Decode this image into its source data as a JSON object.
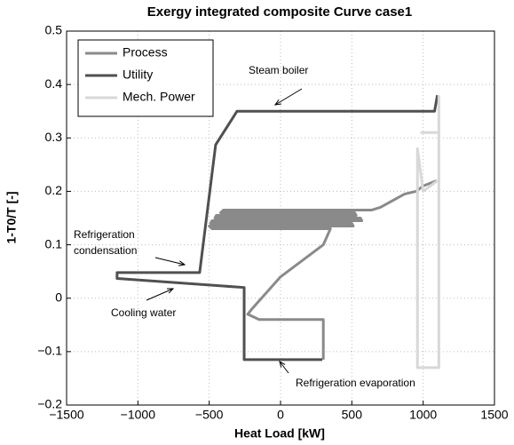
{
  "chart_data": {
    "type": "line",
    "title": "Exergy integrated composite Curve case1",
    "xlabel": "Heat Load [kW]",
    "ylabel": "1-T0/T [-]",
    "xlim": [
      -1500,
      1500
    ],
    "ylim": [
      -0.2,
      0.5
    ],
    "xticks": [
      {
        "value": -1500,
        "label": "−1500"
      },
      {
        "value": -1000,
        "label": "−1000"
      },
      {
        "value": -500,
        "label": "−500"
      },
      0,
      500,
      1000,
      1500
    ],
    "yticks": [
      {
        "value": -0.2,
        "label": "−0.2"
      },
      {
        "value": -0.1,
        "label": "−0.1"
      },
      0,
      0.1,
      0.2,
      0.3,
      0.4,
      0.5
    ],
    "grid": true,
    "legend": "upper left",
    "series": [
      {
        "name": "Process",
        "color": "#8a8a8a",
        "x": [
          1095,
          1000,
          950,
          870,
          700,
          640,
          -400,
          -420,
          520,
          530,
          -450,
          -460,
          560,
          570,
          -480,
          -490,
          500,
          510,
          -500,
          -480,
          350,
          300,
          0,
          -200,
          -230,
          -150,
          300,
          300
        ],
        "values": [
          0.22,
          0.21,
          0.2,
          0.195,
          0.17,
          0.165,
          0.165,
          0.16,
          0.16,
          0.155,
          0.155,
          0.15,
          0.15,
          0.145,
          0.145,
          0.14,
          0.14,
          0.135,
          0.135,
          0.13,
          0.13,
          0.1,
          0.04,
          -0.02,
          -0.03,
          -0.04,
          -0.04,
          -0.115
        ]
      },
      {
        "name": "Utility",
        "color": "#505050",
        "x": [
          1100,
          1080,
          -305,
          -455,
          -567,
          -1146,
          -1146,
          -255,
          -255,
          293
        ],
        "values": [
          0.38,
          0.35,
          0.35,
          0.287,
          0.048,
          0.048,
          0.037,
          0.02,
          -0.115,
          -0.115
        ]
      },
      {
        "name": "Mech. Power",
        "color": "#d8d8d8",
        "x": [
          1110,
          1110,
          960,
          960,
          1000,
          1100,
          null,
          980,
          1100
        ],
        "values": [
          0.38,
          -0.13,
          -0.13,
          0.28,
          0.2,
          0.22,
          null,
          0.31,
          0.31
        ]
      }
    ],
    "annotations": [
      "Steam boiler",
      "Refrigeration",
      "condensation",
      "Cooling water",
      "Refrigeration evaporation"
    ]
  }
}
